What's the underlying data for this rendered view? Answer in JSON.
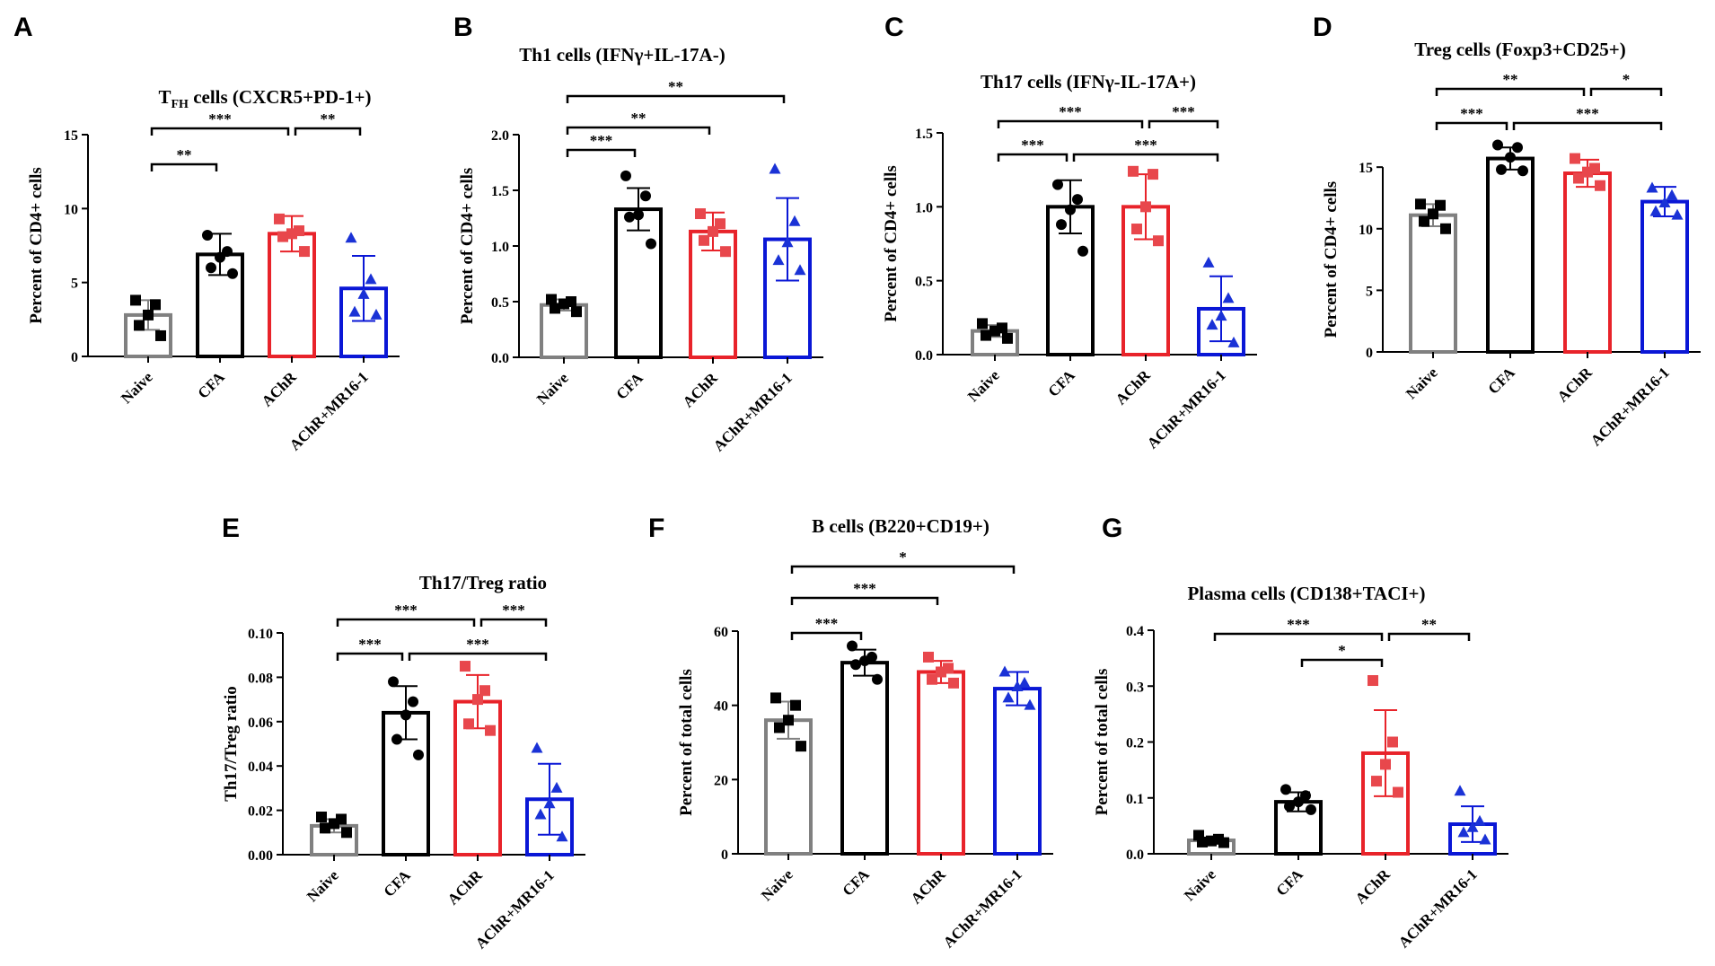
{
  "chart_data": [
    {
      "panel": "A",
      "type": "bar",
      "title": "T",
      "title_sub": "FH",
      "title_rest": " cells (CXCR5+PD-1+)",
      "ylabel": "Percent of CD4+ cells",
      "ylim": [
        0,
        15
      ],
      "yticks": [
        0,
        5,
        10,
        15
      ],
      "ytick_labels": [
        "0",
        "5",
        "10",
        "15"
      ],
      "categories": [
        "Naive",
        "CFA",
        "AChR",
        "AChR+MR16-1"
      ],
      "means": [
        2.8,
        6.9,
        8.3,
        4.6
      ],
      "sd": [
        1.0,
        1.4,
        1.2,
        2.2
      ],
      "points": [
        [
          3.8,
          3.5,
          2.8,
          2.1,
          1.4
        ],
        [
          8.2,
          7.1,
          6.7,
          6.0,
          5.6
        ],
        [
          9.3,
          8.5,
          8.3,
          8.1,
          7.1
        ],
        [
          8.0,
          5.2,
          4.2,
          3.0,
          2.8
        ]
      ],
      "significance": [
        {
          "from": 0,
          "to": 1,
          "label": "**"
        },
        {
          "from": 0,
          "to": 2,
          "label": "***"
        },
        {
          "from": 2,
          "to": 3,
          "label": "**"
        }
      ]
    },
    {
      "panel": "B",
      "type": "bar",
      "title": "Th1 cells (IFNγ+IL-17A-)",
      "ylabel": "Percent of CD4+ cells",
      "ylim": [
        0,
        2.0
      ],
      "yticks": [
        0,
        0.5,
        1.0,
        1.5,
        2.0
      ],
      "ytick_labels": [
        "0.0",
        "0.5",
        "1.0",
        "1.5",
        "2.0"
      ],
      "categories": [
        "Naive",
        "CFA",
        "AChR",
        "AChR+MR16-1"
      ],
      "means": [
        0.47,
        1.33,
        1.13,
        1.06
      ],
      "sd": [
        0.05,
        0.19,
        0.17,
        0.37
      ],
      "points": [
        [
          0.52,
          0.5,
          0.48,
          0.44,
          0.41
        ],
        [
          1.63,
          1.45,
          1.28,
          1.26,
          1.02
        ],
        [
          1.29,
          1.2,
          1.13,
          1.05,
          0.95
        ],
        [
          1.69,
          1.22,
          1.03,
          0.87,
          0.78
        ]
      ],
      "significance": [
        {
          "from": 0,
          "to": 1,
          "label": "***"
        },
        {
          "from": 0,
          "to": 2,
          "label": "**"
        },
        {
          "from": 0,
          "to": 3,
          "label": "**"
        }
      ]
    },
    {
      "panel": "C",
      "type": "bar",
      "title": "Th17 cells (IFNγ-IL-17A+)",
      "ylabel": "Percent of CD4+ cells",
      "ylim": [
        0,
        1.5
      ],
      "yticks": [
        0,
        0.5,
        1.0,
        1.5
      ],
      "ytick_labels": [
        "0.0",
        "0.5",
        "1.0",
        "1.5"
      ],
      "categories": [
        "Naive",
        "CFA",
        "AChR",
        "AChR+MR16-1"
      ],
      "means": [
        0.16,
        1.0,
        1.0,
        0.31
      ],
      "sd": [
        0.04,
        0.18,
        0.22,
        0.22
      ],
      "points": [
        [
          0.21,
          0.18,
          0.16,
          0.13,
          0.11
        ],
        [
          1.15,
          1.05,
          0.98,
          0.88,
          0.7
        ],
        [
          1.24,
          1.22,
          1.0,
          0.85,
          0.77
        ],
        [
          0.62,
          0.38,
          0.26,
          0.2,
          0.08
        ]
      ],
      "significance": [
        {
          "from": 0,
          "to": 1,
          "label": "***"
        },
        {
          "from": 0,
          "to": 2,
          "label": "***"
        },
        {
          "from": 1,
          "to": 3,
          "label": "***"
        },
        {
          "from": 2,
          "to": 3,
          "label": "***"
        }
      ]
    },
    {
      "panel": "D",
      "type": "bar",
      "title": "Treg cells (Foxp3+CD25+)",
      "ylabel": "Percent of CD4+ cells",
      "ylim": [
        0,
        18
      ],
      "yticks": [
        0,
        5,
        10,
        15
      ],
      "ytick_labels": [
        "0",
        "5",
        "10",
        "15"
      ],
      "categories": [
        "Naive",
        "CFA",
        "AChR",
        "AChR+MR16-1"
      ],
      "means": [
        11.1,
        15.7,
        14.5,
        12.2
      ],
      "sd": [
        0.9,
        0.9,
        1.1,
        1.2
      ],
      "points": [
        [
          12.0,
          11.9,
          11.2,
          10.6,
          10.0
        ],
        [
          16.8,
          16.6,
          15.8,
          14.8,
          14.7
        ],
        [
          15.7,
          14.9,
          14.6,
          14.1,
          13.5
        ],
        [
          13.3,
          12.7,
          12.1,
          11.4,
          11.1
        ]
      ],
      "significance": [
        {
          "from": 0,
          "to": 1,
          "label": "***"
        },
        {
          "from": 0,
          "to": 2,
          "label": "**"
        },
        {
          "from": 1,
          "to": 3,
          "label": "***"
        },
        {
          "from": 2,
          "to": 3,
          "label": "*"
        }
      ]
    },
    {
      "panel": "E",
      "type": "bar",
      "title": "Th17/Treg ratio",
      "ylabel": "Th17/Treg ratio",
      "ylim": [
        0,
        0.1
      ],
      "yticks": [
        0,
        0.02,
        0.04,
        0.06,
        0.08,
        0.1
      ],
      "ytick_labels": [
        "0.00",
        "0.02",
        "0.04",
        "0.06",
        "0.08",
        "0.10"
      ],
      "categories": [
        "Naive",
        "CFA",
        "AChR",
        "AChR+MR16-1"
      ],
      "means": [
        0.013,
        0.064,
        0.069,
        0.025
      ],
      "sd": [
        0.003,
        0.012,
        0.012,
        0.016
      ],
      "points": [
        [
          0.017,
          0.016,
          0.014,
          0.012,
          0.01
        ],
        [
          0.078,
          0.069,
          0.063,
          0.052,
          0.045
        ],
        [
          0.085,
          0.074,
          0.07,
          0.059,
          0.056
        ],
        [
          0.048,
          0.03,
          0.023,
          0.018,
          0.008
        ]
      ],
      "significance": [
        {
          "from": 0,
          "to": 1,
          "label": "***"
        },
        {
          "from": 0,
          "to": 2,
          "label": "***"
        },
        {
          "from": 1,
          "to": 3,
          "label": "***"
        },
        {
          "from": 2,
          "to": 3,
          "label": "***"
        }
      ]
    },
    {
      "panel": "F",
      "type": "bar",
      "title": "B cells (B220+CD19+)",
      "ylabel": "Percent of total cells",
      "ylim": [
        0,
        60
      ],
      "yticks": [
        0,
        20,
        40,
        60
      ],
      "ytick_labels": [
        "0",
        "20",
        "40",
        "60"
      ],
      "categories": [
        "Naive",
        "CFA",
        "AChR",
        "AChR+MR16-1"
      ],
      "means": [
        36,
        51.5,
        49,
        44.5
      ],
      "sd": [
        5,
        3.5,
        3,
        4.5
      ],
      "points": [
        [
          42,
          40,
          36,
          34,
          29
        ],
        [
          56,
          53,
          52,
          51,
          47
        ],
        [
          53,
          50,
          49,
          47,
          46
        ],
        [
          49,
          46,
          45,
          42,
          40
        ]
      ],
      "significance": [
        {
          "from": 0,
          "to": 1,
          "label": "***"
        },
        {
          "from": 0,
          "to": 2,
          "label": "***"
        },
        {
          "from": 0,
          "to": 3,
          "label": "*"
        }
      ]
    },
    {
      "panel": "G",
      "type": "bar",
      "title": "Plasma cells (CD138+TACI+)",
      "ylabel": "Percent of total cells",
      "ylim": [
        0,
        0.4
      ],
      "yticks": [
        0,
        0.1,
        0.2,
        0.3,
        0.4
      ],
      "ytick_labels": [
        "0.0",
        "0.1",
        "0.2",
        "0.3",
        "0.4"
      ],
      "categories": [
        "Naive",
        "CFA",
        "AChR",
        "AChR+MR16-1"
      ],
      "means": [
        0.024,
        0.093,
        0.18,
        0.053
      ],
      "sd": [
        0.005,
        0.017,
        0.077,
        0.032
      ],
      "points": [
        [
          0.033,
          0.026,
          0.023,
          0.021,
          0.02
        ],
        [
          0.115,
          0.104,
          0.093,
          0.085,
          0.079
        ],
        [
          0.31,
          0.2,
          0.16,
          0.13,
          0.11
        ],
        [
          0.112,
          0.058,
          0.047,
          0.038,
          0.025
        ]
      ],
      "significance": [
        {
          "from": 0,
          "to": 2,
          "label": "***"
        },
        {
          "from": 1,
          "to": 2,
          "label": "*"
        },
        {
          "from": 2,
          "to": 3,
          "label": "**"
        }
      ]
    }
  ],
  "style": {
    "group_colors": [
      "#808080",
      "#000000",
      "#e8232a",
      "#0a17d6"
    ],
    "marker_shapes": [
      "square",
      "circle",
      "square",
      "triangle"
    ],
    "marker_colors": [
      "#000000",
      "#000000",
      "#e8474c",
      "#1a32d6"
    ]
  }
}
